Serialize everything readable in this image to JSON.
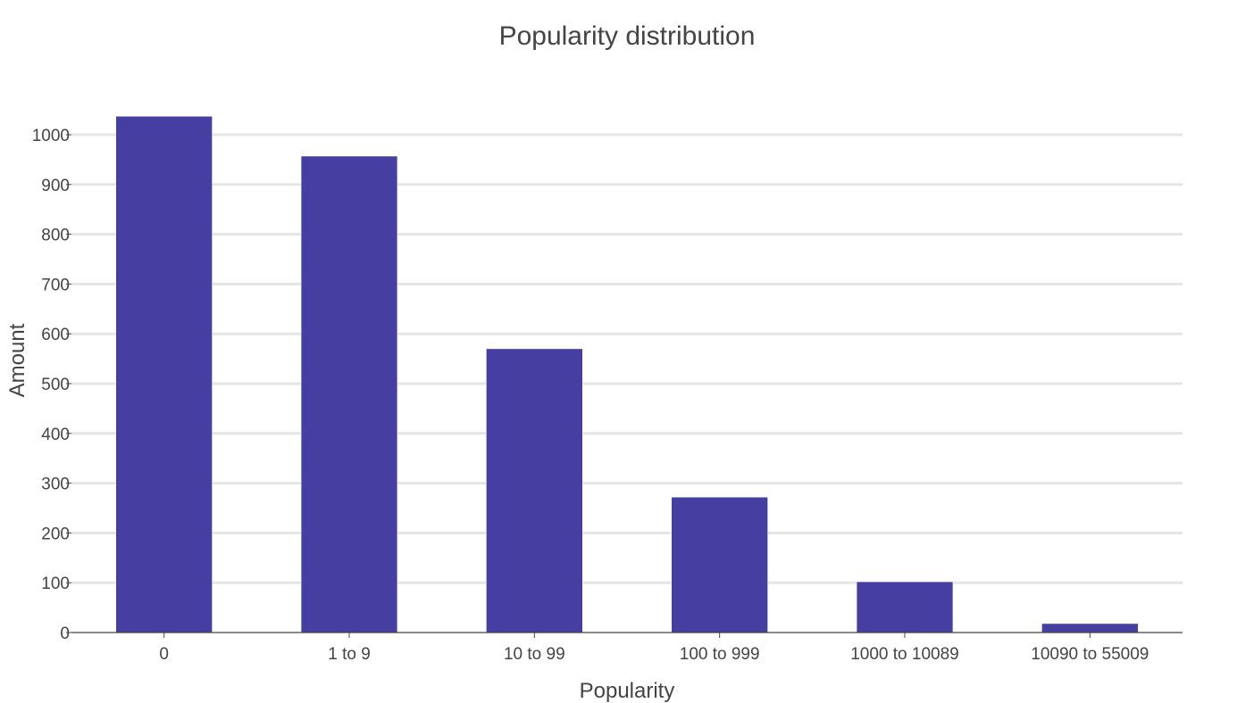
{
  "chart_data": {
    "type": "bar",
    "title": "Popularity distribution",
    "xlabel": "Popularity",
    "ylabel": "Amount",
    "categories": [
      "0",
      "1 to 9",
      "10 to 99",
      "100 to 999",
      "1000 to 10089",
      "10090 to 55009"
    ],
    "values": [
      1037,
      957,
      570,
      272,
      102,
      18
    ],
    "ylim": [
      0,
      1000
    ],
    "yticks": [
      0,
      100,
      200,
      300,
      400,
      500,
      600,
      700,
      800,
      900,
      1000
    ],
    "grid": true,
    "legend": "none",
    "colors": {
      "bar": "#463ea0",
      "grid": "#e5e5e5",
      "text": "#444444",
      "axis": "#444444"
    }
  }
}
